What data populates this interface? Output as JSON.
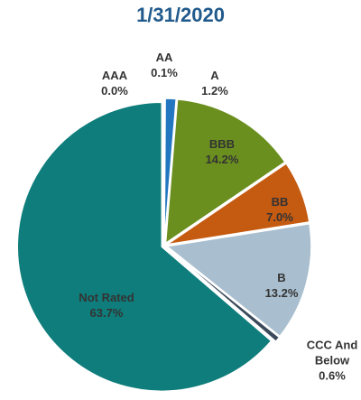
{
  "chart_data": {
    "type": "pie",
    "title": "1/31/2020",
    "categories": [
      "AAA",
      "AA",
      "A",
      "BBB",
      "BB",
      "B",
      "CCC And Below",
      "Not Rated"
    ],
    "values": [
      0.0,
      0.1,
      1.2,
      14.2,
      7.0,
      13.2,
      0.6,
      63.7
    ],
    "value_labels": [
      "0.0%",
      "0.1%",
      "1.2%",
      "14.2%",
      "7.0%",
      "13.2%",
      "0.6%",
      "63.7%"
    ],
    "colors": [
      "#1f3864",
      "#2f5597",
      "#2277c0",
      "#6a8f1f",
      "#c55a11",
      "#a9bfcf",
      "#3b4a5a",
      "#0e7d7b"
    ]
  }
}
